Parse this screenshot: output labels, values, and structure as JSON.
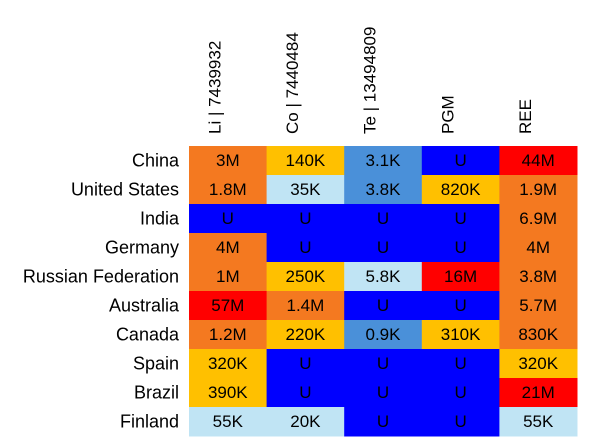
{
  "chart_data": {
    "type": "heatmap",
    "columns": [
      "Li | 7439932",
      "Co | 7440484",
      "Te | 13494809",
      "PGM",
      "REE"
    ],
    "rows": [
      "China",
      "United States",
      "India",
      "Germany",
      "Russian Federation",
      "Australia",
      "Canada",
      "Spain",
      "Brazil",
      "Finland"
    ],
    "cells": [
      [
        "3M",
        "140K",
        "3.1K",
        "U",
        "44M"
      ],
      [
        "1.8M",
        "35K",
        "3.8K",
        "820K",
        "1.9M"
      ],
      [
        "U",
        "U",
        "U",
        "U",
        "6.9M"
      ],
      [
        "4M",
        "U",
        "U",
        "U",
        "4M"
      ],
      [
        "1M",
        "250K",
        "5.8K",
        "16M",
        "3.8M"
      ],
      [
        "57M",
        "1.4M",
        "U",
        "U",
        "5.7M"
      ],
      [
        "1.2M",
        "220K",
        "0.9K",
        "310K",
        "830K"
      ],
      [
        "320K",
        "U",
        "U",
        "U",
        "320K"
      ],
      [
        "390K",
        "U",
        "U",
        "U",
        "21M"
      ],
      [
        "55K",
        "20K",
        "U",
        "U",
        "55K"
      ]
    ],
    "cell_colors": [
      [
        "#f47920",
        "#ffc000",
        "#4a90d9",
        "#0000ff",
        "#ff0000"
      ],
      [
        "#f47920",
        "#c0e4f4",
        "#4a90d9",
        "#ffc000",
        "#f47920"
      ],
      [
        "#0000ff",
        "#0000ff",
        "#0000ff",
        "#0000ff",
        "#f47920"
      ],
      [
        "#f47920",
        "#0000ff",
        "#0000ff",
        "#0000ff",
        "#f47920"
      ],
      [
        "#f47920",
        "#ffc000",
        "#c0e4f4",
        "#ff0000",
        "#f47920"
      ],
      [
        "#ff0000",
        "#f47920",
        "#0000ff",
        "#0000ff",
        "#f47920"
      ],
      [
        "#f47920",
        "#ffc000",
        "#4a90d9",
        "#ffc000",
        "#f47920"
      ],
      [
        "#ffc000",
        "#0000ff",
        "#0000ff",
        "#0000ff",
        "#ffc000"
      ],
      [
        "#ffc000",
        "#0000ff",
        "#0000ff",
        "#0000ff",
        "#ff0000"
      ],
      [
        "#c0e4f4",
        "#c0e4f4",
        "#0000ff",
        "#0000ff",
        "#c0e4f4"
      ]
    ],
    "legend": "none",
    "grid": false
  }
}
